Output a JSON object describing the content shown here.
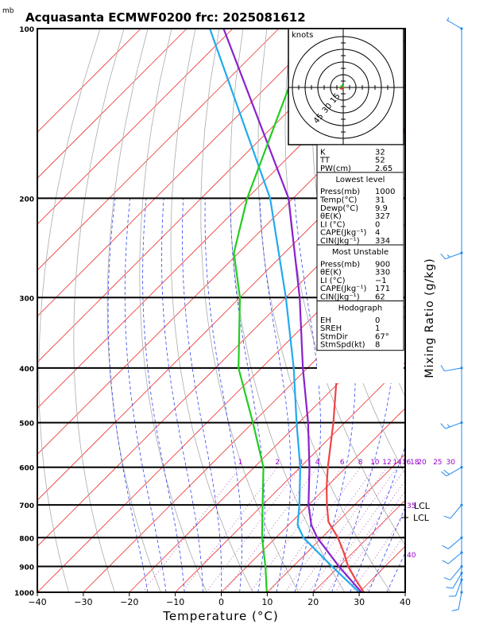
{
  "chart_data": {
    "type": "skew-t",
    "title": "Acquasanta ECMWF0200 frc: 2025081612",
    "pressure_unit": "mb",
    "xlabel": "Temperature (°C)",
    "ylabel_right": "Mixing Ratio (g/kg)",
    "x_ticks": [
      "−40",
      "−30",
      "−20",
      "−10",
      "0",
      "10",
      "20",
      "30",
      "40"
    ],
    "x_range": [
      -40,
      40
    ],
    "p_range": [
      1000,
      100
    ],
    "p_ticks": [
      {
        "p": 100,
        "label": "100"
      },
      {
        "p": 200,
        "label": "200"
      },
      {
        "p": 300,
        "label": "300"
      },
      {
        "p": 400,
        "label": "400"
      },
      {
        "p": 500,
        "label": "500"
      },
      {
        "p": 600,
        "label": "600"
      },
      {
        "p": 700,
        "label": "700"
      },
      {
        "p": 800,
        "label": "800"
      },
      {
        "p": 900,
        "label": "900"
      },
      {
        "p": 1000,
        "label": "1000"
      }
    ],
    "mixing_ratio_labels": [
      "1",
      "2",
      "3",
      "4",
      "6",
      "8",
      "10",
      "12",
      "14",
      "16",
      "18",
      "20",
      "25",
      "30"
    ],
    "isotherm_labels": [
      {
        "label": "35",
        "p": 700
      },
      {
        "label": "40",
        "p": 855
      }
    ],
    "lcl_label": "LCL",
    "temperature": [
      {
        "p": 1000,
        "t": 31
      },
      {
        "p": 950,
        "t": 26.5
      },
      {
        "p": 900,
        "t": 22
      },
      {
        "p": 850,
        "t": 18
      },
      {
        "p": 800,
        "t": 13.5
      },
      {
        "p": 750,
        "t": 8
      },
      {
        "p": 700,
        "t": 4
      },
      {
        "p": 650,
        "t": 0
      },
      {
        "p": 600,
        "t": -4
      },
      {
        "p": 500,
        "t": -12.5
      },
      {
        "p": 400,
        "t": -23.5
      },
      {
        "p": 300,
        "t": -34.5
      },
      {
        "p": 250,
        "t": -42
      },
      {
        "p": 200,
        "t": -53
      },
      {
        "p": 100,
        "t": -72
      }
    ],
    "dewpoint": [
      {
        "p": 1000,
        "t": 9.9
      },
      {
        "p": 900,
        "t": 4
      },
      {
        "p": 800,
        "t": -3
      },
      {
        "p": 700,
        "t": -10
      },
      {
        "p": 600,
        "t": -18
      },
      {
        "p": 500,
        "t": -30
      },
      {
        "p": 400,
        "t": -45
      },
      {
        "p": 300,
        "t": -60
      },
      {
        "p": 250,
        "t": -71
      },
      {
        "p": 200,
        "t": -80
      },
      {
        "p": 100,
        "t": -103
      }
    ],
    "parcel": [
      {
        "p": 1000,
        "t": 30.5
      },
      {
        "p": 900,
        "t": 20
      },
      {
        "p": 800,
        "t": 9
      },
      {
        "p": 760,
        "t": 5
      },
      {
        "p": 700,
        "t": 0
      },
      {
        "p": 600,
        "t": -8
      },
      {
        "p": 500,
        "t": -18
      },
      {
        "p": 400,
        "t": -31
      },
      {
        "p": 300,
        "t": -47
      },
      {
        "p": 200,
        "t": -71
      },
      {
        "p": 100,
        "t": -122
      }
    ],
    "cyan_profile": [
      {
        "p": 1000,
        "t": 30
      },
      {
        "p": 900,
        "t": 18.5
      },
      {
        "p": 800,
        "t": 6
      },
      {
        "p": 760,
        "t": 2
      },
      {
        "p": 700,
        "t": -2
      },
      {
        "p": 600,
        "t": -10
      },
      {
        "p": 500,
        "t": -20.5
      },
      {
        "p": 400,
        "t": -33
      },
      {
        "p": 300,
        "t": -50
      },
      {
        "p": 200,
        "t": -75
      },
      {
        "p": 100,
        "t": -125
      }
    ],
    "wind_barbs": [
      {
        "p": 100,
        "dir": 300,
        "kt": 5
      },
      {
        "p": 250,
        "dir": 250,
        "kt": 15
      },
      {
        "p": 400,
        "dir": 260,
        "kt": 10
      },
      {
        "p": 500,
        "dir": 250,
        "kt": 15
      },
      {
        "p": 600,
        "dir": 240,
        "kt": 20
      },
      {
        "p": 700,
        "dir": 220,
        "kt": 10
      },
      {
        "p": 800,
        "dir": 230,
        "kt": 10
      },
      {
        "p": 850,
        "dir": 230,
        "kt": 10
      },
      {
        "p": 900,
        "dir": 220,
        "kt": 10
      },
      {
        "p": 925,
        "dir": 210,
        "kt": 10
      },
      {
        "p": 950,
        "dir": 200,
        "kt": 10
      },
      {
        "p": 1000,
        "dir": 190,
        "kt": 10
      }
    ],
    "hodograph": {
      "unit_label": "knots",
      "ring_labels": [
        "15",
        "30",
        "45"
      ]
    }
  },
  "table": [
    {
      "label": "K",
      "value": "32"
    },
    {
      "label": "TT",
      "value": "52"
    },
    {
      "label": "PW(cm)",
      "value": "2.65"
    },
    {
      "header": "Lowest level"
    },
    {
      "label": "Press(mb)",
      "value": "1000"
    },
    {
      "label": "Temp(°C)",
      "value": "31"
    },
    {
      "label": "Dewp(°C)",
      "value": "9.9"
    },
    {
      "label": "θE(K)",
      "value": "327"
    },
    {
      "label": "LI (°C)",
      "value": "0"
    },
    {
      "label": "CAPE(Jkg⁻¹)",
      "value": "4"
    },
    {
      "label": "CIN(Jkg⁻¹)",
      "value": "334"
    },
    {
      "header": "Most Unstable"
    },
    {
      "label": "Press(mb)",
      "value": "900"
    },
    {
      "label": "θE(K)",
      "value": "330"
    },
    {
      "label": "LI (°C)",
      "value": "−1"
    },
    {
      "label": "CAPE(Jkg⁻¹)",
      "value": "171"
    },
    {
      "label": "CIN(Jkg⁻¹)",
      "value": "62"
    },
    {
      "header": "Hodograph"
    },
    {
      "label": "EH",
      "value": "0"
    },
    {
      "label": "SREH",
      "value": "1"
    },
    {
      "label": "StmDir",
      "value": "67°"
    },
    {
      "label": "StmSpd(kt)",
      "value": "8"
    }
  ],
  "colors": {
    "temperature": "#ee4444",
    "dewpoint": "#22cc22",
    "parcel": "#8822cc",
    "cyan_profile": "#22aaee",
    "isotherm": "#ee3333",
    "dry_adiabat": "#aaaaaa",
    "moist_adiabat": "#3344ee",
    "mixing_ratio": "#aa44aa",
    "wind": "#2288ee"
  }
}
